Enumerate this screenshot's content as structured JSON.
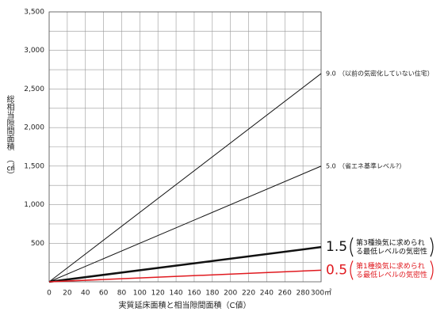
{
  "chart_data": {
    "type": "line",
    "y_label": "総相当隙間面積",
    "y_unit": "（㎠）",
    "x_label": "実質延床面積と相当隙間面積（C値）",
    "x": [
      0,
      300
    ],
    "xlim": [
      0,
      300
    ],
    "xticks": [
      0,
      20,
      40,
      60,
      80,
      100,
      120,
      140,
      160,
      180,
      200,
      220,
      240,
      260,
      280,
      {
        "value": 300,
        "label": "300㎡"
      }
    ],
    "ylim": [
      0,
      3500
    ],
    "yticks": [
      {
        "value": 500,
        "label": "500"
      },
      {
        "value": 1000,
        "label": "1,000"
      },
      {
        "value": 1500,
        "label": "1,500"
      },
      {
        "value": 2000,
        "label": "2,000"
      },
      {
        "value": 2500,
        "label": "2,500"
      },
      {
        "value": 3000,
        "label": "3,000"
      },
      {
        "value": 3500,
        "label": "3,500"
      }
    ],
    "grid": true,
    "series": [
      {
        "name": "9.0",
        "note": "（以前の気密化していない住宅）",
        "color": "#111111",
        "stroke_width": 1,
        "values": [
          0,
          2700
        ]
      },
      {
        "name": "5.0",
        "note": "（省エネ基準レベル?）",
        "color": "#111111",
        "stroke_width": 1,
        "values": [
          0,
          1500
        ]
      },
      {
        "name": "1.5",
        "note_lines": [
          "第3種換気に求められ",
          "る最低レベルの気密性"
        ],
        "color": "#111111",
        "stroke_width": 2.5,
        "values": [
          0,
          450
        ]
      },
      {
        "name": "0.5",
        "note_lines": [
          "第1種換気に求められ",
          "る最低レベルの気密性"
        ],
        "color": "#e0191f",
        "stroke_width": 1.5,
        "values": [
          0,
          150
        ]
      }
    ]
  }
}
